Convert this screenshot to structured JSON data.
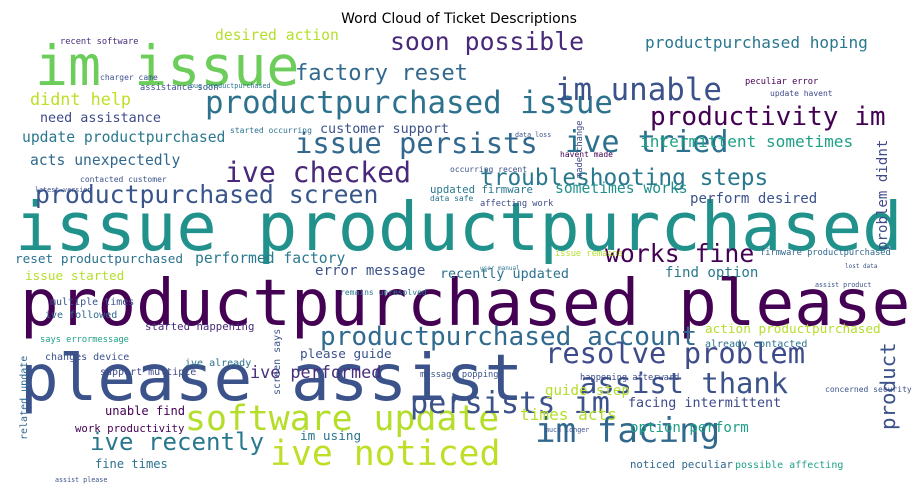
{
  "chart_data": {
    "type": "wordcloud",
    "title": "Word Cloud of Ticket Descriptions",
    "words": [
      {
        "text": "im issue",
        "weight": 0.82,
        "color": "#6ccd5a"
      },
      {
        "text": "issue productpurchased",
        "weight": 1.0,
        "color": "#21918c"
      },
      {
        "text": "productpurchased please",
        "weight": 0.96,
        "color": "#440154"
      },
      {
        "text": "please assist",
        "weight": 0.96,
        "color": "#3b528b"
      },
      {
        "text": "productpurchased issue",
        "weight": 0.46,
        "color": "#2c728e"
      },
      {
        "text": "issue persists",
        "weight": 0.43,
        "color": "#31688e"
      },
      {
        "text": "ive tried",
        "weight": 0.45,
        "color": "#2c728e"
      },
      {
        "text": "troubleshooting steps",
        "weight": 0.34,
        "color": "#2a788e"
      },
      {
        "text": "ive checked",
        "weight": 0.42,
        "color": "#482878"
      },
      {
        "text": "productpurchased screen",
        "weight": 0.37,
        "color": "#39568c"
      },
      {
        "text": "software update",
        "weight": 0.52,
        "color": "#b5de2b"
      },
      {
        "text": "ive noticed",
        "weight": 0.52,
        "color": "#bddf26"
      },
      {
        "text": "im facing",
        "weight": 0.51,
        "color": "#31688e"
      },
      {
        "text": "persists im",
        "weight": 0.45,
        "color": "#3b528b"
      },
      {
        "text": "resolve problem",
        "weight": 0.43,
        "color": "#3e4a89"
      },
      {
        "text": "productpurchased account",
        "weight": 0.39,
        "color": "#306a8e"
      },
      {
        "text": "assist thank",
        "weight": 0.43,
        "color": "#3b528b"
      },
      {
        "text": "ive recently",
        "weight": 0.36,
        "color": "#2a788e"
      },
      {
        "text": "ive performed",
        "weight": 0.25,
        "color": "#472d7b"
      },
      {
        "text": "im unable",
        "weight": 0.46,
        "color": "#3b528b"
      },
      {
        "text": "productivity im",
        "weight": 0.39,
        "color": "#440154"
      },
      {
        "text": "soon possible",
        "weight": 0.37,
        "color": "#482878"
      },
      {
        "text": "factory reset",
        "weight": 0.33,
        "color": "#31688e"
      },
      {
        "text": "desired action",
        "weight": 0.22,
        "color": "#b5de2b"
      },
      {
        "text": "productpurchased hoping",
        "weight": 0.24,
        "color": "#2a788e"
      },
      {
        "text": "didnt help",
        "weight": 0.25,
        "color": "#bddf26"
      },
      {
        "text": "need assistance",
        "weight": 0.2,
        "color": "#3e4a89"
      },
      {
        "text": "update productpurchased",
        "weight": 0.22,
        "color": "#2a788e"
      },
      {
        "text": "acts unexpectedly",
        "weight": 0.22,
        "color": "#31688e"
      },
      {
        "text": "customer support",
        "weight": 0.2,
        "color": "#3b528b"
      },
      {
        "text": "intermittent sometimes",
        "weight": 0.24,
        "color": "#1fa187"
      },
      {
        "text": "problem didnt",
        "weight": 0.21,
        "color": "#3e4a89"
      },
      {
        "text": "sometimes works",
        "weight": 0.22,
        "color": "#21918c"
      },
      {
        "text": "perform desired",
        "weight": 0.21,
        "color": "#3b528b"
      },
      {
        "text": "updated firmware",
        "weight": 0.16,
        "color": "#2a788e"
      },
      {
        "text": "works fine",
        "weight": 0.37,
        "color": "#440154"
      },
      {
        "text": "reset productpurchased",
        "weight": 0.19,
        "color": "#2c728e"
      },
      {
        "text": "performed factory",
        "weight": 0.22,
        "color": "#2a788e"
      },
      {
        "text": "issue started",
        "weight": 0.19,
        "color": "#b5de2b"
      },
      {
        "text": "error message",
        "weight": 0.21,
        "color": "#3b528b"
      },
      {
        "text": "recently updated",
        "weight": 0.2,
        "color": "#2c728e"
      },
      {
        "text": "find option",
        "weight": 0.21,
        "color": "#2a788e"
      },
      {
        "text": "firmware productpurchased",
        "weight": 0.13,
        "color": "#31688e"
      },
      {
        "text": "product",
        "weight": 0.31,
        "color": "#3b528b"
      },
      {
        "text": "action productpurchased",
        "weight": 0.19,
        "color": "#b5de2b"
      },
      {
        "text": "facing intermittent",
        "weight": 0.2,
        "color": "#3e4a89"
      },
      {
        "text": "option perform",
        "weight": 0.21,
        "color": "#1fa187"
      },
      {
        "text": "times acts",
        "weight": 0.24,
        "color": "#b5de2b"
      },
      {
        "text": "guide step",
        "weight": 0.21,
        "color": "#b5de2b"
      },
      {
        "text": "please guide",
        "weight": 0.19,
        "color": "#3b528b"
      },
      {
        "text": "unable find",
        "weight": 0.18,
        "color": "#440154"
      },
      {
        "text": "im using",
        "weight": 0.19,
        "color": "#2a788e"
      },
      {
        "text": "work productivity",
        "weight": 0.16,
        "color": "#440154"
      },
      {
        "text": "fine times",
        "weight": 0.18,
        "color": "#2c728e"
      },
      {
        "text": "noticed peculiar",
        "weight": 0.16,
        "color": "#31688e"
      },
      {
        "text": "possible affecting",
        "weight": 0.15,
        "color": "#1fa187"
      },
      {
        "text": "started happening",
        "weight": 0.16,
        "color": "#472d7b"
      },
      {
        "text": "multiple times",
        "weight": 0.15,
        "color": "#3b528b"
      },
      {
        "text": "ive followed",
        "weight": 0.15,
        "color": "#31688e"
      },
      {
        "text": "changes device",
        "weight": 0.15,
        "color": "#3b528b"
      },
      {
        "text": "support multiple",
        "weight": 0.15,
        "color": "#3e4a89"
      },
      {
        "text": "ive already",
        "weight": 0.15,
        "color": "#2c728e"
      },
      {
        "text": "says errormessage",
        "weight": 0.13,
        "color": "#1fa187"
      },
      {
        "text": "related update",
        "weight": 0.15,
        "color": "#31688e"
      },
      {
        "text": "screen says",
        "weight": 0.15,
        "color": "#3b528b"
      },
      {
        "text": "already contacted",
        "weight": 0.15,
        "color": "#2c728e"
      },
      {
        "text": "message popping",
        "weight": 0.13,
        "color": "#3b528b"
      },
      {
        "text": "happening afterward",
        "weight": 0.13,
        "color": "#3e4a89"
      },
      {
        "text": "issue remains",
        "weight": 0.13,
        "color": "#b5de2b"
      },
      {
        "text": "remains unresolved",
        "weight": 0.12,
        "color": "#2a788e"
      },
      {
        "text": "assistance soon",
        "weight": 0.13,
        "color": "#3b528b"
      },
      {
        "text": "recent software",
        "weight": 0.13,
        "color": "#472d7b"
      },
      {
        "text": "made change",
        "weight": 0.13,
        "color": "#3e4a89"
      },
      {
        "text": "concerned security",
        "weight": 0.12,
        "color": "#3b528b"
      },
      {
        "text": "started occurring",
        "weight": 0.12,
        "color": "#2c728e"
      },
      {
        "text": "peculiar error",
        "weight": 0.13,
        "color": "#440154"
      },
      {
        "text": "havent made",
        "weight": 0.12,
        "color": "#440154"
      },
      {
        "text": "contacted customer",
        "weight": 0.12,
        "color": "#3b528b"
      },
      {
        "text": "data loss",
        "weight": 0.1,
        "color": "#3b528b"
      },
      {
        "text": "data safe",
        "weight": 0.12,
        "color": "#2c728e"
      },
      {
        "text": "affecting work",
        "weight": 0.13,
        "color": "#3e4a89"
      },
      {
        "text": "occurring recent",
        "weight": 0.12,
        "color": "#3b528b"
      },
      {
        "text": "latest version",
        "weight": 0.1,
        "color": "#3b528b"
      },
      {
        "text": "charger came",
        "weight": 0.12,
        "color": "#3b528b"
      },
      {
        "text": "update havent",
        "weight": 0.12,
        "color": "#3e4a89"
      },
      {
        "text": "bug productpurchased",
        "weight": 0.1,
        "color": "#2c728e"
      },
      {
        "text": "much longer",
        "weight": 0.1,
        "color": "#3b528b"
      },
      {
        "text": "assist please",
        "weight": 0.1,
        "color": "#3b528b"
      },
      {
        "text": "user manual",
        "weight": 0.09,
        "color": "#2a788e"
      },
      {
        "text": "assist product",
        "weight": 0.1,
        "color": "#3b528b"
      },
      {
        "text": "lost data",
        "weight": 0.09,
        "color": "#3b528b"
      }
    ]
  }
}
